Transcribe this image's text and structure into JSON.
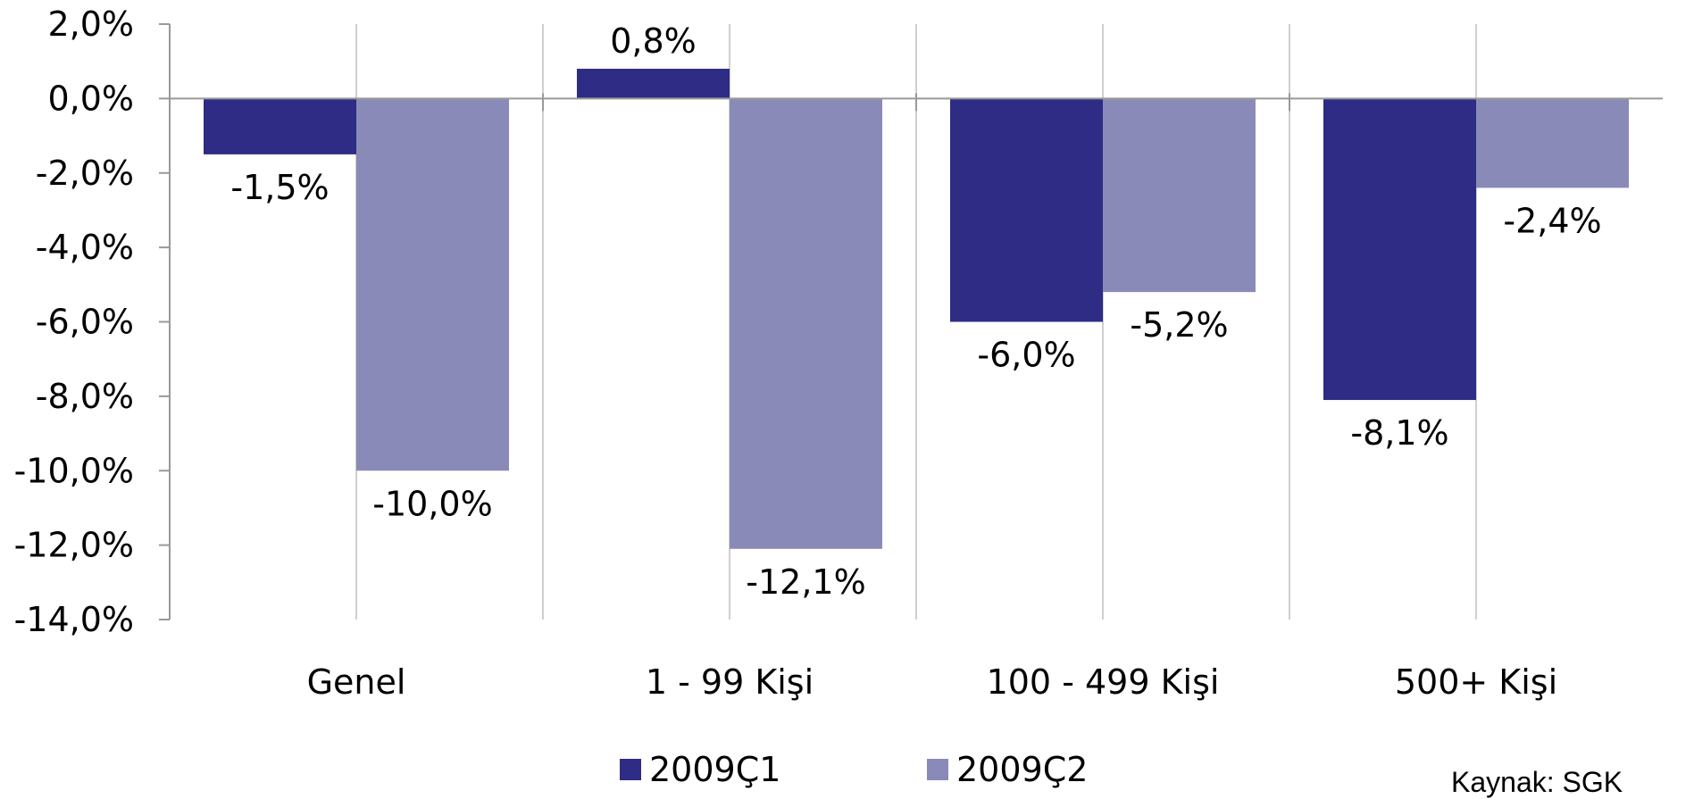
{
  "chart_data": {
    "type": "bar",
    "title": "",
    "xlabel": "",
    "ylabel": "",
    "categories": [
      "Genel",
      "1 - 99 Kişi",
      "100 - 499 Kişi",
      "500+ Kişi"
    ],
    "series": [
      {
        "name": "2009Ç1",
        "values": [
          -1.5,
          0.8,
          -6.0,
          -8.1
        ],
        "labels": [
          "-1,5%",
          "0,8%",
          "-6,0%",
          "-8,1%"
        ],
        "color": "#2e2c84"
      },
      {
        "name": "2009Ç2",
        "values": [
          -10.0,
          -12.1,
          -5.2,
          -2.4
        ],
        "labels": [
          "-10,0%",
          "-12,1%",
          "-5,2%",
          "-2,4%"
        ],
        "color": "#8a8ab8"
      }
    ],
    "ylim": [
      -14,
      2
    ],
    "yticks": [
      2,
      0,
      -2,
      -4,
      -6,
      -8,
      -10,
      -12,
      -14
    ],
    "ytick_labels": [
      "2,0%",
      "0,0%",
      "-2,0%",
      "-4,0%",
      "-6,0%",
      "-8,0%",
      "-10,0%",
      "-12,0%",
      "-14,0%"
    ],
    "grid": "vertical",
    "legend": "bottom",
    "axis_color": "#999999",
    "grid_color": "#bfbfbf"
  },
  "source_note": "Kaynak: SGK"
}
